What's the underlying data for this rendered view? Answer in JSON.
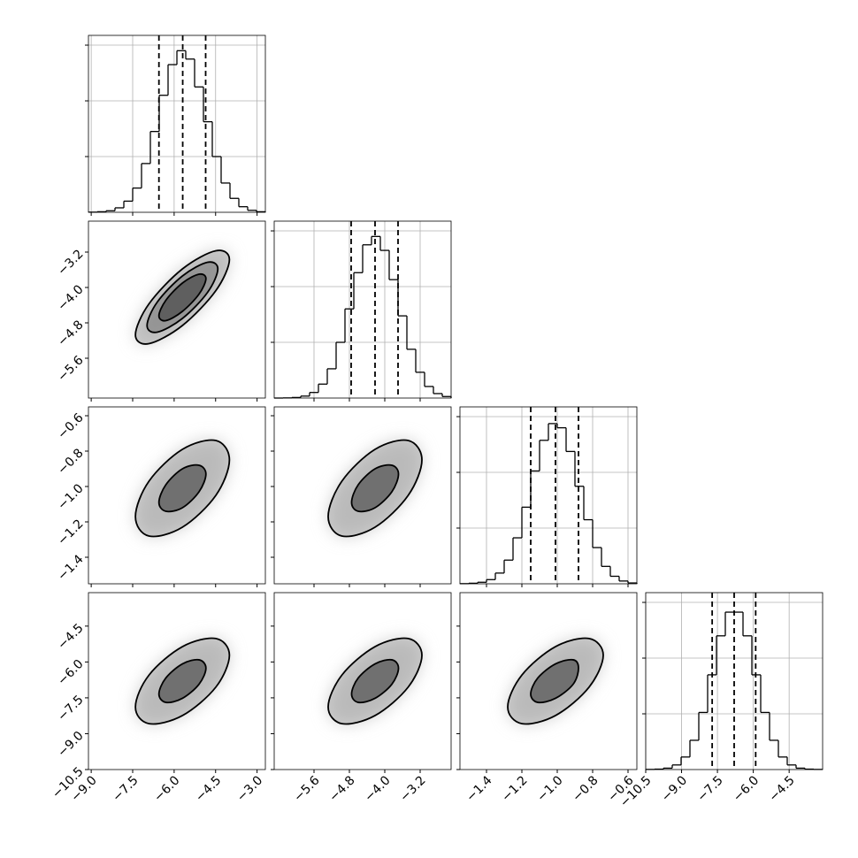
{
  "chart_data": {
    "type": "corner",
    "hist_ylim": [
      0,
      1270
    ],
    "hist_yticks": [
      400,
      800,
      1200
    ],
    "parameters": [
      {
        "xlim": [
          -9.1,
          -2.7
        ],
        "ticks": [
          {
            "value": -9,
            "label": "−9.0"
          },
          {
            "value": -7.5,
            "label": "−7.5"
          },
          {
            "value": -6,
            "label": "−6.0"
          },
          {
            "value": -4.5,
            "label": "−4.5"
          },
          {
            "value": -3,
            "label": "−3.0"
          }
        ],
        "quantiles": [
          -6.55,
          -5.69,
          -4.86
        ],
        "bins": [
          -9.1,
          -8.78,
          -8.46,
          -8.14,
          -7.82,
          -7.5,
          -7.18,
          -6.86,
          -6.54,
          -6.22,
          -5.9,
          -5.58,
          -5.26,
          -4.94,
          -4.62,
          -4.3,
          -3.98,
          -3.66,
          -3.34,
          -3.02,
          -2.7
        ],
        "counts": [
          1,
          4,
          11,
          32,
          80,
          174,
          350,
          580,
          840,
          1060,
          1160,
          1100,
          900,
          650,
          400,
          210,
          100,
          40,
          14,
          4
        ]
      },
      {
        "xlim": [
          -6.5,
          -2.5
        ],
        "ticks": [
          {
            "value": -5.6,
            "label": "−5.6"
          },
          {
            "value": -4.8,
            "label": "−4.8"
          },
          {
            "value": -4,
            "label": "−4.0"
          },
          {
            "value": -3.2,
            "label": "−3.2"
          }
        ],
        "quantiles": [
          -4.76,
          -4.22,
          -3.7
        ],
        "bins": [
          -6.5,
          -6.3,
          -6.1,
          -5.9,
          -5.7,
          -5.5,
          -5.3,
          -5.1,
          -4.9,
          -4.7,
          -4.5,
          -4.3,
          -4.1,
          -3.9,
          -3.7,
          -3.5,
          -3.3,
          -3.1,
          -2.9,
          -2.7,
          -2.5
        ],
        "counts": [
          0,
          1,
          4,
          14,
          40,
          100,
          210,
          400,
          640,
          900,
          1100,
          1160,
          1060,
          850,
          590,
          350,
          185,
          83,
          32,
          11
        ]
      },
      {
        "xlim": [
          -1.55,
          -0.55
        ],
        "ticks": [
          {
            "value": -1.4,
            "label": "−1.4"
          },
          {
            "value": -1.2,
            "label": "−1.2"
          },
          {
            "value": -1,
            "label": "−1.0"
          },
          {
            "value": -0.8,
            "label": "−0.8"
          },
          {
            "value": -0.6,
            "label": "−0.6"
          }
        ],
        "quantiles": [
          -1.15,
          -1.01,
          -0.88
        ],
        "bins": [
          -1.55,
          -1.5,
          -1.45,
          -1.4,
          -1.35,
          -1.3,
          -1.25,
          -1.2,
          -1.15,
          -1.1,
          -1.05,
          -1,
          -0.95,
          -0.9,
          -0.85,
          -0.8,
          -0.75,
          -0.7,
          -0.65,
          -0.6,
          -0.55
        ],
        "counts": [
          1,
          4,
          11,
          30,
          77,
          170,
          330,
          550,
          810,
          1030,
          1150,
          1120,
          950,
          700,
          460,
          260,
          125,
          54,
          20,
          6
        ]
      },
      {
        "xlim": [
          -10.5,
          -3.1
        ],
        "ticks": [
          {
            "value": -10.5,
            "label": "−10.5"
          },
          {
            "value": -9,
            "label": "−9.0"
          },
          {
            "value": -7.5,
            "label": "−7.5"
          },
          {
            "value": -6,
            "label": "−6.0"
          },
          {
            "value": -4.5,
            "label": "−4.5"
          }
        ],
        "quantiles": [
          -7.72,
          -6.8,
          -5.9
        ],
        "bins": [
          -10.5,
          -10.13,
          -9.76,
          -9.39,
          -9.02,
          -8.65,
          -8.28,
          -7.91,
          -7.54,
          -7.17,
          -6.8,
          -6.43,
          -6.06,
          -5.69,
          -5.32,
          -4.95,
          -4.58,
          -4.21,
          -3.84,
          -3.47,
          -3.1
        ],
        "counts": [
          1,
          3,
          10,
          33,
          90,
          210,
          410,
          680,
          960,
          1130,
          1130,
          960,
          680,
          410,
          210,
          90,
          33,
          10,
          3,
          1
        ]
      }
    ],
    "pairs": [
      [
        {
          "contours": [
            {
              "x": [
                -4.85,
                -5.1,
                -5.7,
                -6.3,
                -6.55,
                -6.3,
                -5.7,
                -5.1
              ],
              "y": [
                -3.8,
                -3.7,
                -3.9,
                -4.29,
                -4.64,
                -4.75,
                -4.54,
                -4.15
              ]
            },
            {
              "x": [
                -4.42,
                -4.79,
                -5.7,
                -6.61,
                -6.98,
                -6.61,
                -5.7,
                -4.79
              ],
              "y": [
                -3.58,
                -3.43,
                -3.74,
                -4.33,
                -4.86,
                -5.01,
                -4.7,
                -4.11
              ]
            },
            {
              "x": [
                -4,
                -4.49,
                -5.7,
                -6.91,
                -7.4,
                -6.91,
                -5.7,
                -4.49
              ],
              "y": [
                -3.37,
                -3.17,
                -3.58,
                -4.37,
                -5.07,
                -5.27,
                -4.86,
                -4.07
              ]
            }
          ]
        }
      ],
      [
        {
          "contours": [
            {
              "x": [
                -4.85,
                -5.1,
                -5.7,
                -6.3,
                -6.55,
                -6.3,
                -5.7,
                -5.1
              ],
              "y": [
                -0.93,
                -0.88,
                -0.9,
                -0.99,
                -1.09,
                -1.14,
                -1.12,
                -1.03
              ]
            },
            {
              "x": [
                -4,
                -4.49,
                -5.7,
                -6.91,
                -7.4,
                -6.91,
                -5.7,
                -4.49
              ],
              "y": [
                -0.85,
                -0.74,
                -0.79,
                -0.97,
                -1.17,
                -1.28,
                -1.23,
                -1.05
              ]
            }
          ]
        },
        {
          "contours": [
            {
              "x": [
                -3.69,
                -3.84,
                -4.22,
                -4.6,
                -4.75,
                -4.6,
                -4.22,
                -3.84
              ],
              "y": [
                -0.93,
                -0.88,
                -0.9,
                -0.99,
                -1.09,
                -1.14,
                -1.12,
                -1.03
              ]
            },
            {
              "x": [
                -3.16,
                -3.47,
                -4.22,
                -4.97,
                -5.28,
                -4.97,
                -4.22,
                -3.47
              ],
              "y": [
                -0.85,
                -0.74,
                -0.79,
                -0.97,
                -1.17,
                -1.28,
                -1.23,
                -1.05
              ]
            }
          ]
        }
      ],
      [
        {
          "contours": [
            {
              "x": [
                -4.85,
                -5.1,
                -5.7,
                -6.3,
                -6.55,
                -6.3,
                -5.7,
                -5.1
              ],
              "y": [
                -6.26,
                -5.91,
                -6.08,
                -6.67,
                -7.34,
                -7.69,
                -7.52,
                -6.93
              ]
            },
            {
              "x": [
                -4,
                -4.49,
                -5.7,
                -6.91,
                -7.4,
                -6.91,
                -5.7,
                -4.49
              ],
              "y": [
                -5.72,
                -5.02,
                -5.36,
                -6.55,
                -7.88,
                -8.58,
                -8.24,
                -7.05
              ]
            }
          ]
        },
        {
          "contours": [
            {
              "x": [
                -3.69,
                -3.84,
                -4.22,
                -4.6,
                -4.75,
                -4.6,
                -4.22,
                -3.84
              ],
              "y": [
                -6.26,
                -5.91,
                -6.08,
                -6.67,
                -7.34,
                -7.69,
                -7.52,
                -6.93
              ]
            },
            {
              "x": [
                -3.16,
                -3.47,
                -4.22,
                -4.97,
                -5.28,
                -4.97,
                -4.22,
                -3.47
              ],
              "y": [
                -5.72,
                -5.02,
                -5.36,
                -6.55,
                -7.88,
                -8.58,
                -8.24,
                -7.05
              ]
            }
          ]
        },
        {
          "contours": [
            {
              "x": [
                -0.88,
                -0.91,
                -1.01,
                -1.11,
                -1.15,
                -1.11,
                -1.01,
                -0.91
              ],
              "y": [
                -6.26,
                -5.91,
                -6.08,
                -6.67,
                -7.34,
                -7.69,
                -7.52,
                -6.93
              ]
            },
            {
              "x": [
                -0.74,
                -0.82,
                -1.01,
                -1.2,
                -1.28,
                -1.2,
                -1.01,
                -0.82
              ],
              "y": [
                -5.72,
                -5.02,
                -5.36,
                -6.55,
                -7.88,
                -8.58,
                -8.24,
                -7.05
              ]
            }
          ]
        }
      ]
    ]
  }
}
